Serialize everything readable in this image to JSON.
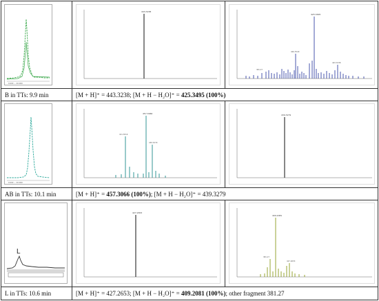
{
  "rows": [
    {
      "label": "B in TTs: 9.9 min",
      "ms_parts": [
        {
          "text": "[M + H]⁺ = 443.3238; [M + H − H₂O]⁺ = ",
          "bold": false
        },
        {
          "text": "425.3495 (100%)",
          "bold": true
        }
      ]
    },
    {
      "label": "AB in TTs: 10.1 min",
      "ms_parts": [
        {
          "text": "[M + H]⁺ = ",
          "bold": false
        },
        {
          "text": "457.3066 (100%)",
          "bold": true
        },
        {
          "text": "; [M + H − H₂O]⁺ = 439.3279",
          "bold": false
        }
      ]
    },
    {
      "label": "L in TTs: 10.6 min",
      "ms_parts": [
        {
          "text": "[M + H]⁺ = 427.2653; [M + H − H₂O]⁺ = ",
          "bold": false
        },
        {
          "text": "409.2081 (100%)",
          "bold": true
        },
        {
          "text": "; other fragment 381.27",
          "bold": false
        }
      ]
    }
  ],
  "spectra_labels": {
    "b_single": "443.3238",
    "b_main": "425.3495",
    "ab_main": "457.3066",
    "ab_single": "439.3279",
    "l_single": "427.2653",
    "l_main": "409.2081",
    "l_other": "381.27"
  },
  "chromatogram_peak_label": "L",
  "colors": {
    "b_chrom": "#3aa84a",
    "b_ms2": "#1a2a9a",
    "ab_chrom": "#2aa89a",
    "ab_ms1": "#1a8a8a",
    "l_chrom": "#333333",
    "l_ms2": "#8a9a1a",
    "single": "#222222"
  }
}
